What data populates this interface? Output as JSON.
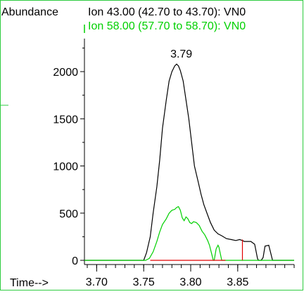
{
  "chart_data": {
    "type": "line",
    "ylabel": "Abundance",
    "xlabel": "Time-->",
    "xlim": [
      3.687,
      3.91
    ],
    "ylim": [
      0,
      2350
    ],
    "xticks": [
      "3.70",
      "3.75",
      "3.80",
      "3.85"
    ],
    "xtick_values": [
      3.7,
      3.75,
      3.8,
      3.85
    ],
    "yticks": [
      "0",
      "500",
      "1000",
      "1500",
      "2000"
    ],
    "ytick_values": [
      0,
      500,
      1000,
      1500,
      2000
    ],
    "peak_label": {
      "text": "3.79",
      "x": 3.79,
      "y": 2120
    },
    "marker": {
      "x": 3.855,
      "y0": 0,
      "y1": 220
    },
    "series": [
      {
        "name": "Ion  43.00 (42.70 to 43.70): VN0",
        "color": "#000000",
        "x": [
          3.687,
          3.75,
          3.753,
          3.757,
          3.76,
          3.764,
          3.767,
          3.77,
          3.774,
          3.777,
          3.78,
          3.783,
          3.785,
          3.787,
          3.789,
          3.792,
          3.795,
          3.798,
          3.801,
          3.804,
          3.808,
          3.811,
          3.814,
          3.818,
          3.821,
          3.825,
          3.829,
          3.833,
          3.838,
          3.843,
          3.848,
          3.852,
          3.855,
          3.857,
          3.86,
          3.864,
          3.868,
          3.871,
          3.872,
          3.875,
          3.877,
          3.879,
          3.883,
          3.885,
          3.887,
          3.91
        ],
        "y": [
          0,
          0,
          80,
          250,
          500,
          780,
          1060,
          1400,
          1700,
          1900,
          2000,
          2060,
          2080,
          2060,
          2010,
          1900,
          1700,
          1500,
          1250,
          1000,
          830,
          700,
          590,
          480,
          400,
          320,
          280,
          260,
          230,
          220,
          210,
          220,
          210,
          200,
          200,
          200,
          170,
          20,
          0,
          0,
          30,
          150,
          160,
          80,
          0,
          0
        ]
      },
      {
        "name": "Ion  58.00 (57.70 to 58.70): VN0",
        "color": "#00d000",
        "x": [
          3.687,
          3.752,
          3.756,
          3.76,
          3.764,
          3.767,
          3.77,
          3.774,
          3.777,
          3.78,
          3.783,
          3.785,
          3.787,
          3.789,
          3.791,
          3.793,
          3.795,
          3.797,
          3.799,
          3.801,
          3.803,
          3.806,
          3.809,
          3.812,
          3.815,
          3.818,
          3.82,
          3.822,
          3.824,
          3.825,
          3.827,
          3.829,
          3.83,
          3.833,
          3.835,
          3.91
        ],
        "y": [
          0,
          0,
          20,
          90,
          200,
          300,
          380,
          440,
          500,
          530,
          540,
          560,
          570,
          530,
          450,
          420,
          460,
          440,
          400,
          390,
          410,
          400,
          370,
          310,
          270,
          210,
          160,
          80,
          0,
          0,
          120,
          160,
          140,
          0,
          0,
          0
        ]
      },
      {
        "name": "baseline",
        "color": "#e00000",
        "x": [
          3.757,
          3.837
        ],
        "y": [
          0,
          0
        ]
      }
    ]
  },
  "legend": {
    "ion43": "Ion  43.00 (42.70 to 43.70): VN0",
    "ion58": "Ion  58.00 (57.70 to 58.70): VN0"
  }
}
